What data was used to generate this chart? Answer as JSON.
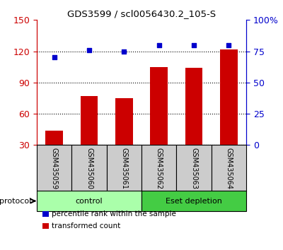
{
  "title": "GDS3599 / scl0056430.2_105-S",
  "samples": [
    "GSM435059",
    "GSM435060",
    "GSM435061",
    "GSM435062",
    "GSM435063",
    "GSM435064"
  ],
  "bar_values": [
    44,
    77,
    75,
    105,
    104,
    122
  ],
  "dot_values": [
    70,
    76,
    75,
    80,
    80,
    80
  ],
  "bar_color": "#cc0000",
  "dot_color": "#0000cc",
  "ylim_left": [
    30,
    150
  ],
  "ylim_right": [
    0,
    100
  ],
  "yticks_left": [
    30,
    60,
    90,
    120,
    150
  ],
  "yticks_right": [
    0,
    25,
    50,
    75,
    100
  ],
  "ytick_labels_right": [
    "0",
    "25",
    "50",
    "75",
    "100%"
  ],
  "groups": [
    {
      "label": "control",
      "indices": [
        0,
        1,
        2
      ],
      "color": "#aaffaa"
    },
    {
      "label": "Eset depletion",
      "indices": [
        3,
        4,
        5
      ],
      "color": "#44cc44"
    }
  ],
  "protocol_label": "protocol",
  "legend_items": [
    {
      "label": "transformed count",
      "color": "#cc0000"
    },
    {
      "label": "percentile rank within the sample",
      "color": "#0000cc"
    }
  ],
  "grid_color": "#000000",
  "tick_label_color_left": "#cc0000",
  "tick_label_color_right": "#0000cc",
  "bar_bottom": 30,
  "sample_box_color": "#cccccc",
  "sample_box_border": "#000000"
}
